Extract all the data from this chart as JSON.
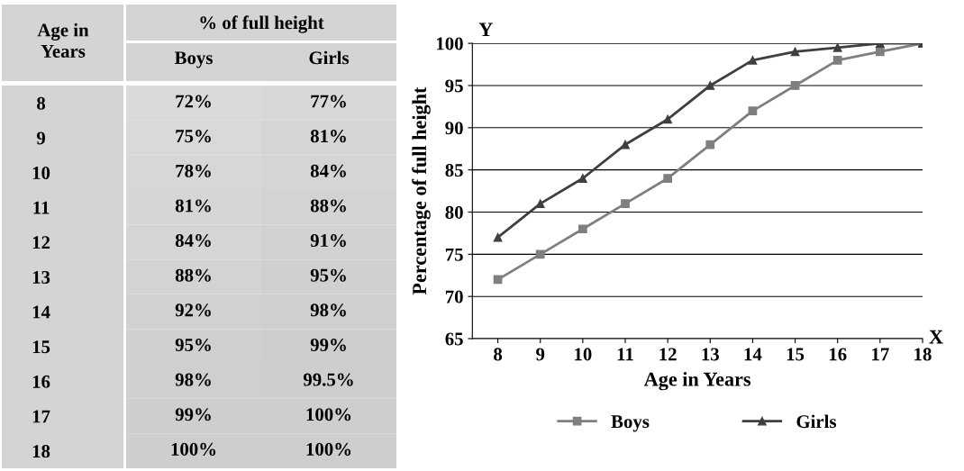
{
  "chart_data": [
    {
      "type": "heatmap",
      "title": "% of full height",
      "ylabel": "Age in Years",
      "categories": [
        "Boys",
        "Girls"
      ],
      "y_categories": [
        "8",
        "9",
        "10",
        "11",
        "12",
        "13",
        "14",
        "15",
        "16",
        "17",
        "18"
      ],
      "cells": [
        [
          72,
          77
        ],
        [
          75,
          81
        ],
        [
          78,
          84
        ],
        [
          81,
          88
        ],
        [
          84,
          91
        ],
        [
          88,
          95
        ],
        [
          92,
          98
        ],
        [
          95,
          99
        ],
        [
          98,
          99.5
        ],
        [
          99,
          100
        ],
        [
          100,
          100
        ]
      ],
      "cell_labels": [
        [
          "72%",
          "77%"
        ],
        [
          "75%",
          "81%"
        ],
        [
          "78%",
          "84%"
        ],
        [
          "81%",
          "88%"
        ],
        [
          "84%",
          "91%"
        ],
        [
          "88%",
          "95%"
        ],
        [
          "92%",
          "98%"
        ],
        [
          "95%",
          "99%"
        ],
        [
          "98%",
          "99.5%"
        ],
        [
          "99%",
          "100%"
        ],
        [
          "100%",
          "100%"
        ]
      ]
    },
    {
      "type": "line",
      "xlabel": "Age in Years",
      "ylabel": "Percentage of full height",
      "categories": [
        "8",
        "9",
        "10",
        "11",
        "12",
        "13",
        "14",
        "15",
        "16",
        "17",
        "18"
      ],
      "series": [
        {
          "name": "Boys",
          "color": "#7f7f7f",
          "marker": "square",
          "values": [
            72,
            75,
            78,
            81,
            84,
            88,
            92,
            95,
            98,
            99,
            100
          ]
        },
        {
          "name": "Girls",
          "color": "#3f3f3f",
          "marker": "triangle",
          "values": [
            77,
            81,
            84,
            88,
            91,
            95,
            98,
            99,
            99.5,
            100,
            100
          ]
        }
      ],
      "ylim": [
        65,
        100
      ],
      "yticks": [
        65,
        70,
        75,
        80,
        85,
        90,
        95,
        100
      ],
      "grid": "y",
      "legend": "bottom",
      "line_style": "solid",
      "annotations": [
        "Y",
        "X"
      ]
    }
  ]
}
